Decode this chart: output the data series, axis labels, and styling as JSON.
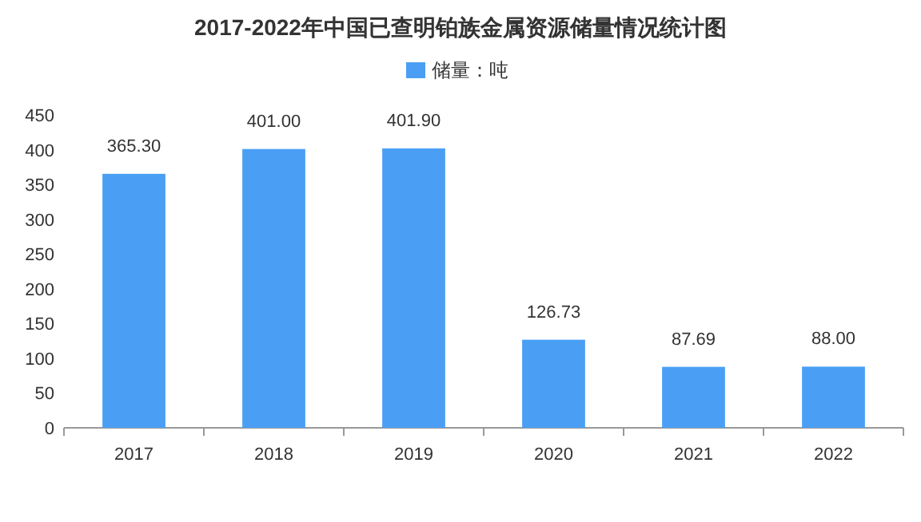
{
  "chart_data": {
    "type": "bar",
    "title": "2017-2022年中国已查明铂族金属资源储量情况统计图",
    "categories": [
      "2017",
      "2018",
      "2019",
      "2020",
      "2021",
      "2022"
    ],
    "series": [
      {
        "name": "储量：吨",
        "color": "#4a9ff5",
        "values": [
          365.3,
          401.0,
          401.9,
          126.73,
          87.69,
          88.0
        ],
        "value_labels": [
          "365.30",
          "401.00",
          "401.90",
          "126.73",
          "87.69",
          "88.00"
        ]
      }
    ],
    "ylim": [
      0,
      450
    ],
    "yticks": [
      0,
      50,
      100,
      150,
      200,
      250,
      300,
      350,
      400,
      450
    ],
    "grid": false,
    "legend": "top"
  }
}
